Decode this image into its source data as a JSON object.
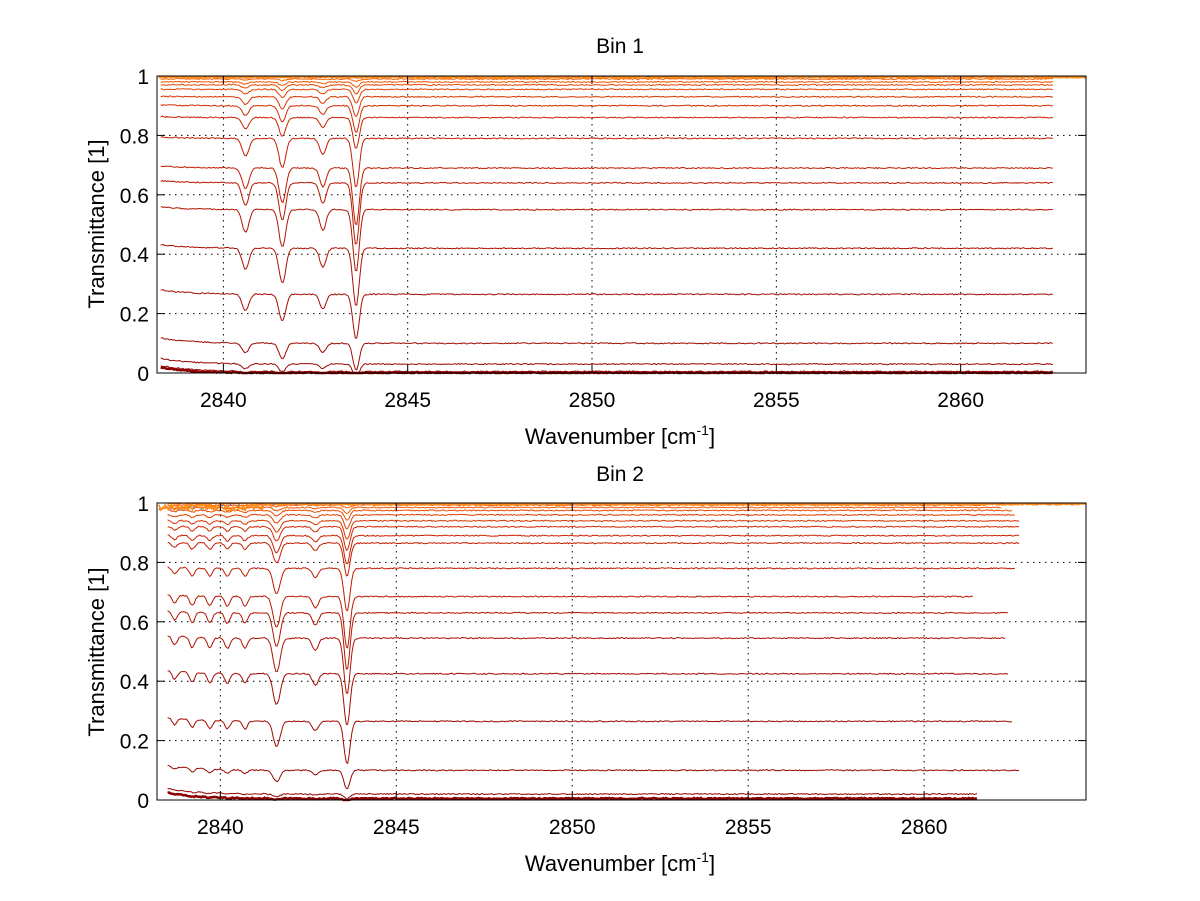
{
  "colors": {
    "frame": "#000000",
    "grid": "#000000",
    "trace_low": "#8b0000",
    "trace_mid": "#cc2200",
    "trace_high": "#ff6a00",
    "top_noise": "#ff8c1a",
    "top_noise_alt": "#3a6fd8"
  },
  "chart_data": [
    {
      "type": "line",
      "title": "Bin 1",
      "xlabel": "Wavenumber [cm",
      "xlabel_sup": "-1",
      "xlabel_close": "]",
      "ylabel": "Transmittance [1]",
      "xlim": [
        2838.2,
        2863.4
      ],
      "ylim": [
        0,
        1
      ],
      "x_ticks": [
        2840,
        2845,
        2850,
        2855,
        2860
      ],
      "y_ticks": [
        0,
        0.2,
        0.4,
        0.6,
        0.8,
        1
      ],
      "x_tick_labels": [
        "2840",
        "2845",
        "2850",
        "2855",
        "2860"
      ],
      "y_tick_labels": [
        "0",
        "0.2",
        "0.4",
        "0.6",
        "0.8",
        "1"
      ],
      "grid": true,
      "x_start": 2838.3,
      "x_end": 2862.5,
      "absorption_lines": [
        {
          "x": 2840.6,
          "width": 0.13,
          "weight": 0.55
        },
        {
          "x": 2841.6,
          "width": 0.13,
          "weight": 0.9
        },
        {
          "x": 2842.7,
          "width": 0.12,
          "weight": 0.5
        },
        {
          "x": 2843.6,
          "width": 0.12,
          "weight": 1.5
        }
      ],
      "series_baselines": [
        0.0,
        0.005,
        0.03,
        0.1,
        0.265,
        0.42,
        0.55,
        0.64,
        0.69,
        0.79,
        0.86,
        0.9,
        0.93,
        0.955,
        0.97,
        0.98,
        0.99,
        0.997
      ],
      "series_depths": [
        0.005,
        0.01,
        0.03,
        0.06,
        0.1,
        0.13,
        0.14,
        0.14,
        0.13,
        0.11,
        0.07,
        0.06,
        0.045,
        0.03,
        0.02,
        0.012,
        0.005,
        0.002
      ]
    },
    {
      "type": "line",
      "title": "Bin 2",
      "xlabel": "Wavenumber [cm",
      "xlabel_sup": "-1",
      "xlabel_close": "]",
      "ylabel": "Transmittance [1]",
      "xlim": [
        2838.2,
        2864.6
      ],
      "ylim": [
        0,
        1
      ],
      "x_ticks": [
        2840,
        2845,
        2850,
        2855,
        2860
      ],
      "y_ticks": [
        0,
        0.2,
        0.4,
        0.6,
        0.8,
        1
      ],
      "x_tick_labels": [
        "2840",
        "2845",
        "2850",
        "2855",
        "2860"
      ],
      "y_tick_labels": [
        "0",
        "0.2",
        "0.4",
        "0.6",
        "0.8",
        "1"
      ],
      "grid": true,
      "x_start": 2838.5,
      "x_end": 2862.5,
      "absorption_lines": [
        {
          "x": 2838.7,
          "width": 0.1,
          "weight": 0.25
        },
        {
          "x": 2839.2,
          "width": 0.1,
          "weight": 0.3
        },
        {
          "x": 2839.7,
          "width": 0.1,
          "weight": 0.3
        },
        {
          "x": 2840.2,
          "width": 0.1,
          "weight": 0.3
        },
        {
          "x": 2840.7,
          "width": 0.1,
          "weight": 0.3
        },
        {
          "x": 2841.6,
          "width": 0.14,
          "weight": 0.95
        },
        {
          "x": 2842.7,
          "width": 0.12,
          "weight": 0.35
        },
        {
          "x": 2843.6,
          "width": 0.12,
          "weight": 1.6
        }
      ],
      "series_baselines": [
        0.005,
        0.02,
        0.1,
        0.265,
        0.425,
        0.545,
        0.63,
        0.685,
        0.78,
        0.865,
        0.89,
        0.92,
        0.94,
        0.96,
        0.975,
        0.985,
        0.993,
        0.998
      ],
      "series_depths": [
        0.005,
        0.01,
        0.04,
        0.09,
        0.11,
        0.12,
        0.12,
        0.11,
        0.09,
        0.07,
        0.06,
        0.05,
        0.04,
        0.03,
        0.02,
        0.012,
        0.006,
        0.002
      ],
      "series_x_end": [
        2861.5,
        2861.5,
        2862.7,
        2862.5,
        2862.4,
        2862.3,
        2862.4,
        2861.4,
        2862.6,
        2862.7,
        2862.7,
        2862.7,
        2862.7,
        2862.6,
        2862.5,
        2862.2,
        2861.8,
        2864.6
      ]
    }
  ]
}
